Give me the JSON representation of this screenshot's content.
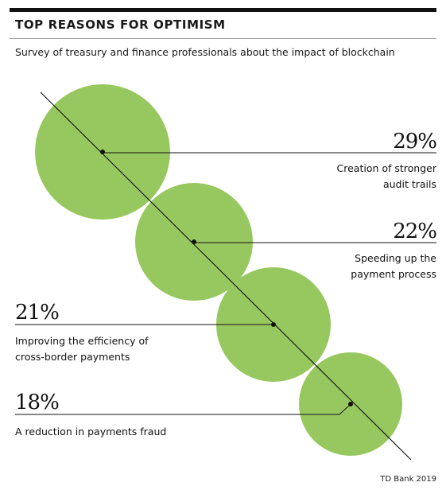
{
  "title": "TOP REASONS FOR OPTIMISM",
  "subtitle": "Survey of treasury and finance professionals about the impact of blockchain",
  "source": "TD Bank 2019",
  "colors": {
    "circle": "#97c75f",
    "ink": "#111111",
    "rule": "#9a9a9a"
  },
  "chart_data": {
    "type": "bubble",
    "title": "TOP REASONS FOR OPTIMISM",
    "subtitle": "Survey of treasury and finance professionals about the impact of blockchain",
    "unit": "%",
    "items": [
      {
        "value": 29,
        "value_label": "29%",
        "label_lines": [
          "Creation of stronger",
          "audit trails"
        ]
      },
      {
        "value": 22,
        "value_label": "22%",
        "label_lines": [
          "Speeding up the",
          "payment process"
        ]
      },
      {
        "value": 21,
        "value_label": "21%",
        "label_lines": [
          "Improving the efficiency of",
          "cross-border payments"
        ]
      },
      {
        "value": 18,
        "value_label": "18%",
        "label_lines": [
          "A reduction in payments fraud"
        ]
      }
    ]
  }
}
